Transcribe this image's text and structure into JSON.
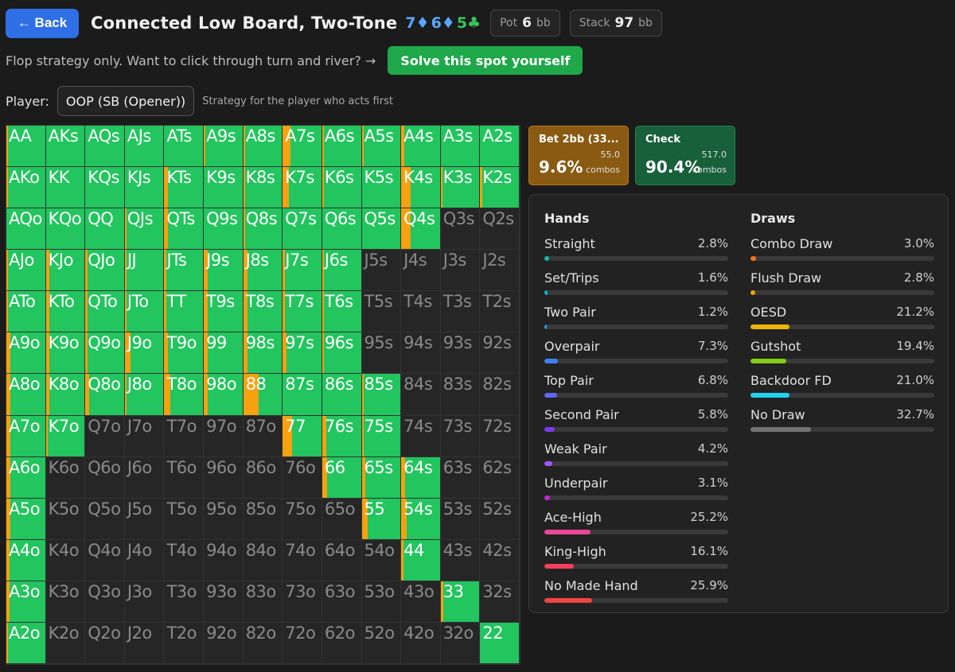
{
  "header": {
    "back_label": "← Back",
    "title": "Connected Low Board, Two-Tone",
    "board": [
      {
        "text": "7♦",
        "color": "blue"
      },
      {
        "text": "6♦",
        "color": "blue"
      },
      {
        "text": "5♣",
        "color": "green"
      }
    ],
    "pot_label": "Pot",
    "pot_value": "6",
    "pot_unit": "bb",
    "stack_label": "Stack",
    "stack_value": "97",
    "stack_unit": "bb"
  },
  "subline": {
    "text": "Flop strategy only. Want to click through turn and river? →",
    "solve_label": "Solve this spot yourself"
  },
  "player": {
    "label": "Player:",
    "selected": "OOP (SB (Opener))",
    "hint": "Strategy for the player who acts first"
  },
  "actions": [
    {
      "name": "Bet 2bb (33...",
      "pct": "9.6%",
      "combos_value": "55.0",
      "combos_label": "combos"
    },
    {
      "name": "Check",
      "pct": "90.4%",
      "combos_value": "517.0",
      "combos_label": "combos"
    }
  ],
  "colors": {
    "bet": "#f5a110",
    "check": "#22c55e",
    "none": "#262626"
  },
  "stats": {
    "hands_title": "Hands",
    "draws_title": "Draws",
    "hands": [
      {
        "label": "Straight",
        "value": "2.8%",
        "pct": 2.8,
        "color": "#14b8a6"
      },
      {
        "label": "Set/Trips",
        "value": "1.6%",
        "pct": 1.6,
        "color": "#06b6d4"
      },
      {
        "label": "Two Pair",
        "value": "1.2%",
        "pct": 1.2,
        "color": "#0ea5e9"
      },
      {
        "label": "Overpair",
        "value": "7.3%",
        "pct": 7.3,
        "color": "#3b82f6"
      },
      {
        "label": "Top Pair",
        "value": "6.8%",
        "pct": 6.8,
        "color": "#6366f1"
      },
      {
        "label": "Second Pair",
        "value": "5.8%",
        "pct": 5.8,
        "color": "#7c3aed"
      },
      {
        "label": "Weak Pair",
        "value": "4.2%",
        "pct": 4.2,
        "color": "#a855f7"
      },
      {
        "label": "Underpair",
        "value": "3.1%",
        "pct": 3.1,
        "color": "#c026d3"
      },
      {
        "label": "Ace-High",
        "value": "25.2%",
        "pct": 25.2,
        "color": "#ec4899"
      },
      {
        "label": "King-High",
        "value": "16.1%",
        "pct": 16.1,
        "color": "#f43f5e"
      },
      {
        "label": "No Made Hand",
        "value": "25.9%",
        "pct": 25.9,
        "color": "#ef4444"
      }
    ],
    "draws": [
      {
        "label": "Combo Draw",
        "value": "3.0%",
        "pct": 3.0,
        "color": "#f97316"
      },
      {
        "label": "Flush Draw",
        "value": "2.8%",
        "pct": 2.8,
        "color": "#f59e0b"
      },
      {
        "label": "OESD",
        "value": "21.2%",
        "pct": 21.2,
        "color": "#eab308"
      },
      {
        "label": "Gutshot",
        "value": "19.4%",
        "pct": 19.4,
        "color": "#84cc16"
      },
      {
        "label": "Backdoor FD",
        "value": "21.0%",
        "pct": 21.0,
        "color": "#22d3ee"
      },
      {
        "label": "No Draw",
        "value": "32.7%",
        "pct": 32.7,
        "color": "#737373"
      }
    ]
  },
  "range_grid": [
    [
      {
        "h": "AA",
        "b": 0.05
      },
      {
        "h": "AKs",
        "b": 0.0
      },
      {
        "h": "AQs",
        "b": 0.0
      },
      {
        "h": "AJs",
        "b": 0.0
      },
      {
        "h": "ATs",
        "b": 0.0
      },
      {
        "h": "A9s",
        "b": 0.05
      },
      {
        "h": "A8s",
        "b": 0.05
      },
      {
        "h": "A7s",
        "b": 0.2
      },
      {
        "h": "A6s",
        "b": 0.05
      },
      {
        "h": "A5s",
        "b": 0.05
      },
      {
        "h": "A4s",
        "b": 0.08
      },
      {
        "h": "A3s",
        "b": 0.0
      },
      {
        "h": "A2s",
        "b": 0.0
      }
    ],
    [
      {
        "h": "AKo",
        "b": 0.05
      },
      {
        "h": "KK",
        "b": 0.0
      },
      {
        "h": "KQs",
        "b": 0.0
      },
      {
        "h": "KJs",
        "b": 0.0
      },
      {
        "h": "KTs",
        "b": 0.1
      },
      {
        "h": "K9s",
        "b": 0.0
      },
      {
        "h": "K8s",
        "b": 0.05
      },
      {
        "h": "K7s",
        "b": 0.15
      },
      {
        "h": "K6s",
        "b": 0.05
      },
      {
        "h": "K5s",
        "b": 0.0
      },
      {
        "h": "K4s",
        "b": 0.25
      },
      {
        "h": "K3s",
        "b": 0.05
      },
      {
        "h": "K2s",
        "b": 0.05
      }
    ],
    [
      {
        "h": "AQo",
        "b": 0.0
      },
      {
        "h": "KQo",
        "b": 0.0
      },
      {
        "h": "QQ",
        "b": 0.0
      },
      {
        "h": "QJs",
        "b": 0.05
      },
      {
        "h": "QTs",
        "b": 0.1
      },
      {
        "h": "Q9s",
        "b": 0.0
      },
      {
        "h": "Q8s",
        "b": 0.05
      },
      {
        "h": "Q7s",
        "b": 0.0
      },
      {
        "h": "Q6s",
        "b": 0.0
      },
      {
        "h": "Q5s",
        "b": 0.0
      },
      {
        "h": "Q4s",
        "b": 0.25
      },
      {
        "h": "Q3s",
        "b": -1
      },
      {
        "h": "Q2s",
        "b": -1
      }
    ],
    [
      {
        "h": "AJo",
        "b": 0.05
      },
      {
        "h": "KJo",
        "b": 0.1
      },
      {
        "h": "QJo",
        "b": 0.05
      },
      {
        "h": "JJ",
        "b": 0.05
      },
      {
        "h": "JTs",
        "b": 0.05
      },
      {
        "h": "J9s",
        "b": 0.1
      },
      {
        "h": "J8s",
        "b": 0.1
      },
      {
        "h": "J7s",
        "b": 0.05
      },
      {
        "h": "J6s",
        "b": 0.05
      },
      {
        "h": "J5s",
        "b": -1
      },
      {
        "h": "J4s",
        "b": -1
      },
      {
        "h": "J3s",
        "b": -1
      },
      {
        "h": "J2s",
        "b": -1
      }
    ],
    [
      {
        "h": "ATo",
        "b": 0.05
      },
      {
        "h": "KTo",
        "b": 0.1
      },
      {
        "h": "QTo",
        "b": 0.05
      },
      {
        "h": "JTo",
        "b": 0.05
      },
      {
        "h": "TT",
        "b": 0.05
      },
      {
        "h": "T9s",
        "b": 0.1
      },
      {
        "h": "T8s",
        "b": 0.1
      },
      {
        "h": "T7s",
        "b": 0.05
      },
      {
        "h": "T6s",
        "b": 0.05
      },
      {
        "h": "T5s",
        "b": -1
      },
      {
        "h": "T4s",
        "b": -1
      },
      {
        "h": "T3s",
        "b": -1
      },
      {
        "h": "T2s",
        "b": -1
      }
    ],
    [
      {
        "h": "A9o",
        "b": 0.1
      },
      {
        "h": "K9o",
        "b": 0.1
      },
      {
        "h": "Q9o",
        "b": 0.05
      },
      {
        "h": "J9o",
        "b": 0.15
      },
      {
        "h": "T9o",
        "b": 0.1
      },
      {
        "h": "99",
        "b": 0.1
      },
      {
        "h": "98s",
        "b": 0.1
      },
      {
        "h": "97s",
        "b": 0.1
      },
      {
        "h": "96s",
        "b": 0.05
      },
      {
        "h": "95s",
        "b": -1
      },
      {
        "h": "94s",
        "b": -1
      },
      {
        "h": "93s",
        "b": -1
      },
      {
        "h": "92s",
        "b": -1
      }
    ],
    [
      {
        "h": "A8o",
        "b": 0.1
      },
      {
        "h": "K8o",
        "b": 0.1
      },
      {
        "h": "Q8o",
        "b": 0.1
      },
      {
        "h": "J8o",
        "b": 0.05
      },
      {
        "h": "T8o",
        "b": 0.15
      },
      {
        "h": "98o",
        "b": 0.1
      },
      {
        "h": "88",
        "b": 0.4
      },
      {
        "h": "87s",
        "b": 0.0
      },
      {
        "h": "86s",
        "b": 0.0
      },
      {
        "h": "85s",
        "b": 0.05
      },
      {
        "h": "84s",
        "b": -1
      },
      {
        "h": "83s",
        "b": -1
      },
      {
        "h": "82s",
        "b": -1
      }
    ],
    [
      {
        "h": "A7o",
        "b": 0.1
      },
      {
        "h": "K7o",
        "b": 0.05
      },
      {
        "h": "Q7o",
        "b": -1
      },
      {
        "h": "J7o",
        "b": -1
      },
      {
        "h": "T7o",
        "b": -1
      },
      {
        "h": "97o",
        "b": -1
      },
      {
        "h": "87o",
        "b": -1
      },
      {
        "h": "77",
        "b": 0.25
      },
      {
        "h": "76s",
        "b": 0.1
      },
      {
        "h": "75s",
        "b": 0.05
      },
      {
        "h": "74s",
        "b": -1
      },
      {
        "h": "73s",
        "b": -1
      },
      {
        "h": "72s",
        "b": -1
      }
    ],
    [
      {
        "h": "A6o",
        "b": 0.1
      },
      {
        "h": "K6o",
        "b": -1
      },
      {
        "h": "Q6o",
        "b": -1
      },
      {
        "h": "J6o",
        "b": -1
      },
      {
        "h": "T6o",
        "b": -1
      },
      {
        "h": "96o",
        "b": -1
      },
      {
        "h": "86o",
        "b": -1
      },
      {
        "h": "76o",
        "b": -1
      },
      {
        "h": "66",
        "b": 0.12
      },
      {
        "h": "65s",
        "b": 0.1
      },
      {
        "h": "64s",
        "b": 0.1
      },
      {
        "h": "63s",
        "b": -1
      },
      {
        "h": "62s",
        "b": -1
      }
    ],
    [
      {
        "h": "A5o",
        "b": 0.1
      },
      {
        "h": "K5o",
        "b": -1
      },
      {
        "h": "Q5o",
        "b": -1
      },
      {
        "h": "J5o",
        "b": -1
      },
      {
        "h": "T5o",
        "b": -1
      },
      {
        "h": "95o",
        "b": -1
      },
      {
        "h": "85o",
        "b": -1
      },
      {
        "h": "75o",
        "b": -1
      },
      {
        "h": "65o",
        "b": -1
      },
      {
        "h": "55",
        "b": 0.15
      },
      {
        "h": "54s",
        "b": 0.15
      },
      {
        "h": "53s",
        "b": -1
      },
      {
        "h": "52s",
        "b": -1
      }
    ],
    [
      {
        "h": "A4o",
        "b": 0.08
      },
      {
        "h": "K4o",
        "b": -1
      },
      {
        "h": "Q4o",
        "b": -1
      },
      {
        "h": "J4o",
        "b": -1
      },
      {
        "h": "T4o",
        "b": -1
      },
      {
        "h": "94o",
        "b": -1
      },
      {
        "h": "84o",
        "b": -1
      },
      {
        "h": "74o",
        "b": -1
      },
      {
        "h": "64o",
        "b": -1
      },
      {
        "h": "54o",
        "b": -1
      },
      {
        "h": "44",
        "b": 0.05
      },
      {
        "h": "43s",
        "b": -1
      },
      {
        "h": "42s",
        "b": -1
      }
    ],
    [
      {
        "h": "A3o",
        "b": 0.08
      },
      {
        "h": "K3o",
        "b": -1
      },
      {
        "h": "Q3o",
        "b": -1
      },
      {
        "h": "J3o",
        "b": -1
      },
      {
        "h": "T3o",
        "b": -1
      },
      {
        "h": "93o",
        "b": -1
      },
      {
        "h": "83o",
        "b": -1
      },
      {
        "h": "73o",
        "b": -1
      },
      {
        "h": "63o",
        "b": -1
      },
      {
        "h": "53o",
        "b": -1
      },
      {
        "h": "43o",
        "b": -1
      },
      {
        "h": "33",
        "b": 0.06
      },
      {
        "h": "32s",
        "b": -1
      }
    ],
    [
      {
        "h": "A2o",
        "b": 0.05
      },
      {
        "h": "K2o",
        "b": -1
      },
      {
        "h": "Q2o",
        "b": -1
      },
      {
        "h": "J2o",
        "b": -1
      },
      {
        "h": "T2o",
        "b": -1
      },
      {
        "h": "92o",
        "b": -1
      },
      {
        "h": "82o",
        "b": -1
      },
      {
        "h": "72o",
        "b": -1
      },
      {
        "h": "62o",
        "b": -1
      },
      {
        "h": "52o",
        "b": -1
      },
      {
        "h": "42o",
        "b": -1
      },
      {
        "h": "32o",
        "b": -1
      },
      {
        "h": "22",
        "b": 0.0
      }
    ]
  ]
}
